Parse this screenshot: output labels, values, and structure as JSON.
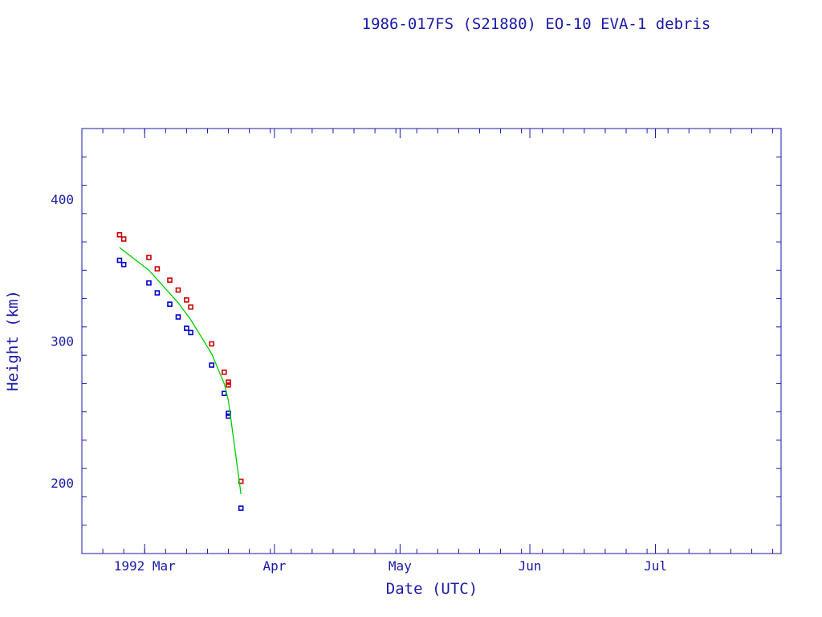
{
  "chart_data": {
    "type": "scatter",
    "title": "1986-017FS (S21880) EO-10 EVA-1 debris",
    "xlabel": "Date (UTC)",
    "ylabel": "Height (km)",
    "xlim": [
      "1992-02-15",
      "1992-07-31"
    ],
    "ylim": [
      150,
      450
    ],
    "x_tick_labels": [
      "1992 Mar",
      "Apr",
      "May",
      "Jun",
      "Jul"
    ],
    "x_tick_dates": [
      "1992-03-01",
      "1992-04-01",
      "1992-05-01",
      "1992-06-01",
      "1992-07-01"
    ],
    "y_ticks": [
      200,
      300,
      400
    ],
    "grid": false,
    "colors": {
      "frame": "#1a1aa6",
      "apogee": "#cc0000",
      "perigee": "#0000cc",
      "mean": "#00cc00"
    },
    "series": [
      {
        "kind": "apogee",
        "x": [
          "1992-02-24",
          "1992-02-25",
          "1992-03-02",
          "1992-03-04",
          "1992-03-07",
          "1992-03-09",
          "1992-03-11",
          "1992-03-12",
          "1992-03-17",
          "1992-03-20",
          "1992-03-21",
          "1992-03-21",
          "1992-03-24"
        ],
        "values": [
          375,
          372,
          359,
          351,
          343,
          336,
          329,
          324,
          298,
          278,
          271,
          269,
          201
        ]
      },
      {
        "kind": "perigee",
        "x": [
          "1992-02-24",
          "1992-02-25",
          "1992-03-02",
          "1992-03-04",
          "1992-03-07",
          "1992-03-09",
          "1992-03-11",
          "1992-03-12",
          "1992-03-17",
          "1992-03-20",
          "1992-03-21",
          "1992-03-21",
          "1992-03-24"
        ],
        "values": [
          357,
          354,
          341,
          334,
          326,
          317,
          309,
          306,
          283,
          263,
          249,
          247,
          182
        ]
      },
      {
        "kind": "mean",
        "x": [
          "1992-02-24",
          "1992-03-02",
          "1992-03-09",
          "1992-03-12",
          "1992-03-17",
          "1992-03-20",
          "1992-03-21",
          "1992-03-24"
        ],
        "values": [
          366,
          350,
          327,
          315,
          291,
          270,
          258,
          192
        ]
      }
    ]
  }
}
